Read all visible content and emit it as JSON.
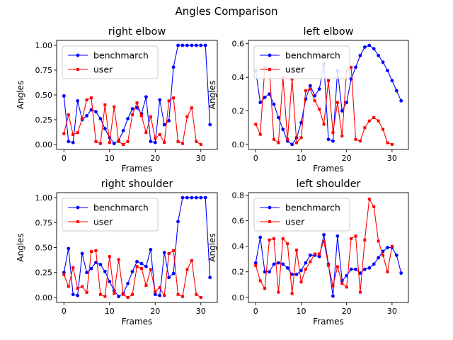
{
  "figure": {
    "suptitle": "Angles Comparison"
  },
  "chart_data": [
    {
      "type": "line",
      "title": "right elbow",
      "xlabel": "Frames",
      "ylabel": "Angles",
      "xlim": [
        -1.6,
        33.6
      ],
      "ylim": [
        -0.05,
        1.05
      ],
      "xticks": [
        0,
        10,
        20,
        30
      ],
      "yticks": [
        0.0,
        0.25,
        0.5,
        0.75,
        1.0
      ],
      "ytick_labels": [
        "0.00",
        "0.25",
        "0.50",
        "0.75",
        "1.00"
      ],
      "legend": "top-left",
      "series": [
        {
          "name": "benchmarch",
          "color": "#0000ff",
          "marker": "circle",
          "x": [
            0,
            1,
            2,
            3,
            4,
            5,
            6,
            7,
            8,
            9,
            10,
            11,
            12,
            13,
            14,
            15,
            16,
            17,
            18,
            19,
            20,
            21,
            22,
            23,
            24,
            25,
            26,
            27,
            28,
            29,
            30,
            31,
            32
          ],
          "y": [
            0.49,
            0.03,
            0.02,
            0.44,
            0.25,
            0.29,
            0.35,
            0.33,
            0.26,
            0.16,
            0.07,
            0.01,
            0.04,
            0.14,
            0.26,
            0.36,
            0.37,
            0.31,
            0.48,
            0.03,
            0.02,
            0.45,
            0.2,
            0.24,
            0.78,
            1.0,
            1.0,
            1.0,
            1.0,
            1.0,
            1.0,
            1.0,
            0.2
          ]
        },
        {
          "name": "user",
          "color": "#ff0000",
          "marker": "square",
          "x": [
            0,
            1,
            2,
            3,
            4,
            5,
            6,
            7,
            8,
            9,
            10,
            11,
            12,
            13,
            14,
            15,
            16,
            17,
            18,
            19,
            20,
            21,
            22,
            23,
            24,
            25,
            26,
            27,
            28,
            29,
            30
          ],
          "y": [
            0.11,
            0.3,
            0.1,
            0.12,
            0.26,
            0.45,
            0.47,
            0.03,
            0.01,
            0.4,
            0.02,
            0.38,
            0.03,
            0.0,
            0.03,
            0.3,
            0.42,
            0.29,
            0.12,
            0.28,
            0.06,
            0.1,
            0.02,
            0.44,
            0.47,
            0.03,
            0.01,
            0.28,
            0.37,
            0.03,
            0.0
          ]
        }
      ]
    },
    {
      "type": "line",
      "title": "left elbow",
      "xlabel": "Frames",
      "ylabel": "Angles",
      "xlim": [
        -1.6,
        33.6
      ],
      "ylim": [
        -0.03,
        0.62
      ],
      "xticks": [
        0,
        10,
        20,
        30
      ],
      "yticks": [
        0.0,
        0.2,
        0.4,
        0.6
      ],
      "ytick_labels": [
        "0.0",
        "0.2",
        "0.4",
        "0.6"
      ],
      "legend": "top-left",
      "series": [
        {
          "name": "benchmarch",
          "color": "#0000ff",
          "marker": "circle",
          "x": [
            0,
            1,
            2,
            3,
            4,
            5,
            6,
            7,
            8,
            9,
            10,
            11,
            12,
            13,
            14,
            15,
            16,
            17,
            18,
            19,
            20,
            21,
            22,
            23,
            24,
            25,
            26,
            27,
            28,
            29,
            30,
            31,
            32
          ],
          "y": [
            0.44,
            0.25,
            0.28,
            0.3,
            0.24,
            0.16,
            0.09,
            0.02,
            0.0,
            0.04,
            0.13,
            0.27,
            0.35,
            0.29,
            0.33,
            0.48,
            0.03,
            0.02,
            0.44,
            0.2,
            0.25,
            0.39,
            0.46,
            0.53,
            0.58,
            0.59,
            0.57,
            0.53,
            0.49,
            0.44,
            0.38,
            0.32,
            0.26
          ]
        },
        {
          "name": "user",
          "color": "#ff0000",
          "marker": "square",
          "x": [
            0,
            1,
            2,
            3,
            4,
            5,
            6,
            7,
            8,
            9,
            10,
            11,
            12,
            13,
            14,
            15,
            16,
            17,
            18,
            19,
            20,
            21,
            22,
            23,
            24,
            25,
            26,
            27,
            28,
            29,
            30
          ],
          "y": [
            0.12,
            0.06,
            0.46,
            0.45,
            0.03,
            0.01,
            0.4,
            0.03,
            0.39,
            0.01,
            0.04,
            0.32,
            0.33,
            0.26,
            0.21,
            0.12,
            0.38,
            0.07,
            0.25,
            0.05,
            0.44,
            0.46,
            0.03,
            0.02,
            0.1,
            0.14,
            0.16,
            0.14,
            0.09,
            0.01,
            0.0
          ]
        }
      ]
    },
    {
      "type": "line",
      "title": "right shoulder",
      "xlabel": "Frames",
      "ylabel": "Angles",
      "xlim": [
        -1.6,
        33.6
      ],
      "ylim": [
        -0.05,
        1.05
      ],
      "xticks": [
        0,
        10,
        20,
        30
      ],
      "yticks": [
        0.0,
        0.25,
        0.5,
        0.75,
        1.0
      ],
      "ytick_labels": [
        "0.00",
        "0.25",
        "0.50",
        "0.75",
        "1.00"
      ],
      "legend": "top-left",
      "series": [
        {
          "name": "benchmarch",
          "color": "#0000ff",
          "marker": "circle",
          "x": [
            0,
            1,
            2,
            3,
            4,
            5,
            6,
            7,
            8,
            9,
            10,
            11,
            12,
            13,
            14,
            15,
            16,
            17,
            18,
            19,
            20,
            21,
            22,
            23,
            24,
            25,
            26,
            27,
            28,
            29,
            30,
            31,
            32
          ],
          "y": [
            0.25,
            0.49,
            0.03,
            0.02,
            0.44,
            0.25,
            0.29,
            0.35,
            0.33,
            0.26,
            0.16,
            0.07,
            0.01,
            0.04,
            0.14,
            0.26,
            0.36,
            0.34,
            0.31,
            0.48,
            0.03,
            0.02,
            0.45,
            0.2,
            0.24,
            0.76,
            1.0,
            1.0,
            1.0,
            1.0,
            1.0,
            1.0,
            0.2
          ]
        },
        {
          "name": "user",
          "color": "#ff0000",
          "marker": "square",
          "x": [
            0,
            1,
            2,
            3,
            4,
            5,
            6,
            7,
            8,
            9,
            10,
            11,
            12,
            13,
            14,
            15,
            16,
            17,
            18,
            19,
            20,
            21,
            22,
            23,
            24,
            25,
            26,
            27,
            28,
            29,
            30
          ],
          "y": [
            0.23,
            0.11,
            0.3,
            0.09,
            0.11,
            0.05,
            0.46,
            0.47,
            0.03,
            0.01,
            0.41,
            0.04,
            0.38,
            0.03,
            0.0,
            0.03,
            0.31,
            0.29,
            0.12,
            0.28,
            0.06,
            0.1,
            0.02,
            0.44,
            0.47,
            0.03,
            0.01,
            0.28,
            0.37,
            0.03,
            0.0
          ]
        }
      ]
    },
    {
      "type": "line",
      "title": "left shoulder",
      "xlabel": "Frames",
      "ylabel": "Angles",
      "xlim": [
        -1.6,
        33.6
      ],
      "ylim": [
        -0.04,
        0.82
      ],
      "xticks": [
        0,
        10,
        20,
        30
      ],
      "yticks": [
        0.0,
        0.2,
        0.4,
        0.6,
        0.8
      ],
      "ytick_labels": [
        "0.0",
        "0.2",
        "0.4",
        "0.6",
        "0.8"
      ],
      "legend": "top-left",
      "series": [
        {
          "name": "benchmarch",
          "color": "#0000ff",
          "marker": "circle",
          "x": [
            0,
            1,
            2,
            3,
            4,
            5,
            6,
            7,
            8,
            9,
            10,
            11,
            12,
            13,
            14,
            15,
            16,
            17,
            18,
            19,
            20,
            21,
            22,
            23,
            24,
            25,
            26,
            27,
            28,
            29,
            30,
            31,
            32
          ],
          "y": [
            0.27,
            0.47,
            0.2,
            0.2,
            0.26,
            0.27,
            0.26,
            0.23,
            0.18,
            0.18,
            0.21,
            0.27,
            0.33,
            0.33,
            0.32,
            0.49,
            0.26,
            0.01,
            0.48,
            0.13,
            0.17,
            0.22,
            0.22,
            0.19,
            0.22,
            0.23,
            0.26,
            0.31,
            0.36,
            0.39,
            0.39,
            0.33,
            0.19
          ]
        },
        {
          "name": "user",
          "color": "#ff0000",
          "marker": "square",
          "x": [
            0,
            1,
            2,
            3,
            4,
            5,
            6,
            7,
            8,
            9,
            10,
            11,
            12,
            13,
            14,
            15,
            16,
            17,
            18,
            19,
            20,
            21,
            22,
            23,
            24,
            25,
            26,
            27,
            28,
            29,
            30
          ],
          "y": [
            0.25,
            0.13,
            0.07,
            0.45,
            0.46,
            0.04,
            0.46,
            0.42,
            0.03,
            0.37,
            0.12,
            0.22,
            0.28,
            0.34,
            0.34,
            0.44,
            0.25,
            0.09,
            0.24,
            0.11,
            0.08,
            0.46,
            0.48,
            0.04,
            0.45,
            0.77,
            0.71,
            0.44,
            0.33,
            0.2,
            0.4
          ]
        }
      ]
    }
  ]
}
